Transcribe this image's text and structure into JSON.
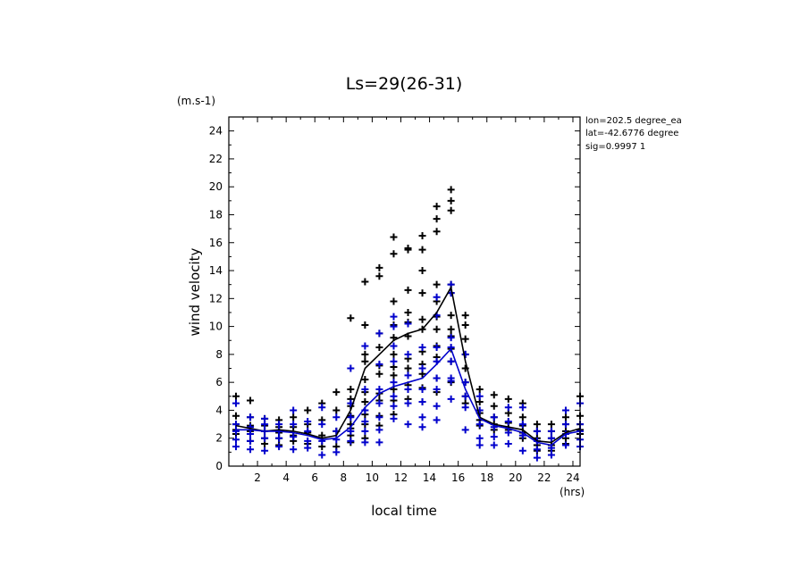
{
  "chart_data": {
    "type": "scatter",
    "title": "Ls=29(26-31)",
    "xlabel": "local time",
    "ylabel": "wind velocity",
    "x_unit": "(hrs)",
    "y_unit": "(m.s-1)",
    "xlim": [
      0,
      24.5
    ],
    "ylim": [
      0,
      25
    ],
    "x_ticks": [
      2,
      4,
      6,
      8,
      10,
      12,
      14,
      16,
      18,
      20,
      22,
      24
    ],
    "y_ticks": [
      0,
      2,
      4,
      6,
      8,
      10,
      12,
      14,
      16,
      18,
      20,
      22,
      24
    ],
    "info_lines": [
      "lon=202.5 degree_ea",
      "lat=-42.6776 degree",
      "sig=0.9997 1"
    ],
    "colors": {
      "series1": "#000000",
      "series2": "#0000cc"
    },
    "series": [
      {
        "x": [
          0.5,
          1.5,
          2.5,
          3.5,
          4.5,
          5.5,
          6.5,
          7.5,
          8.5,
          9.5,
          10.5,
          11.5,
          12.5,
          13.5,
          14.5,
          15.5,
          16.5,
          17.5,
          18.5,
          19.5,
          20.5,
          21.5,
          22.5,
          23.5,
          24.5
        ],
        "values": [
          2.9,
          2.7,
          2.5,
          2.6,
          2.5,
          2.3,
          2.0,
          2.2,
          4.0,
          7.0,
          8.0,
          9.0,
          9.5,
          9.8,
          11.0,
          12.8,
          7.5,
          3.5,
          3.0,
          2.8,
          2.6,
          1.8,
          1.7,
          2.4,
          2.7
        ],
        "points": [
          [
            0.5,
            5.0
          ],
          [
            0.5,
            3.6
          ],
          [
            0.5,
            3.0
          ],
          [
            0.5,
            2.6
          ],
          [
            0.5,
            2.3
          ],
          [
            1.5,
            4.7
          ],
          [
            1.5,
            3.5
          ],
          [
            1.5,
            2.9
          ],
          [
            1.5,
            2.5
          ],
          [
            1.5,
            1.8
          ],
          [
            2.5,
            3.4
          ],
          [
            2.5,
            2.9
          ],
          [
            2.5,
            2.5
          ],
          [
            2.5,
            2.0
          ],
          [
            2.5,
            1.6
          ],
          [
            3.5,
            3.3
          ],
          [
            3.5,
            2.8
          ],
          [
            3.5,
            2.4
          ],
          [
            3.5,
            2.0
          ],
          [
            3.5,
            1.5
          ],
          [
            4.5,
            3.5
          ],
          [
            4.5,
            2.8
          ],
          [
            4.5,
            2.2
          ],
          [
            4.5,
            1.8
          ],
          [
            5.5,
            4.0
          ],
          [
            5.5,
            3.0
          ],
          [
            5.5,
            2.4
          ],
          [
            5.5,
            1.6
          ],
          [
            6.5,
            4.5
          ],
          [
            6.5,
            3.3
          ],
          [
            6.5,
            2.2
          ],
          [
            6.5,
            1.4
          ],
          [
            7.5,
            5.3
          ],
          [
            7.5,
            4.0
          ],
          [
            7.5,
            2.5
          ],
          [
            7.5,
            1.4
          ],
          [
            8.5,
            10.6
          ],
          [
            8.5,
            5.5
          ],
          [
            8.5,
            4.8
          ],
          [
            8.5,
            4.3
          ],
          [
            8.5,
            3.6
          ],
          [
            8.5,
            3.0
          ],
          [
            8.5,
            2.7
          ],
          [
            8.5,
            2.2
          ],
          [
            8.5,
            1.7
          ],
          [
            9.5,
            13.2
          ],
          [
            9.5,
            10.1
          ],
          [
            9.5,
            8.0
          ],
          [
            9.5,
            7.5
          ],
          [
            9.5,
            6.2
          ],
          [
            9.5,
            5.3
          ],
          [
            9.5,
            4.6
          ],
          [
            9.5,
            3.7
          ],
          [
            9.5,
            3.0
          ],
          [
            9.5,
            2.0
          ],
          [
            10.5,
            14.2
          ],
          [
            10.5,
            13.6
          ],
          [
            10.5,
            9.5
          ],
          [
            10.5,
            8.5
          ],
          [
            10.5,
            7.2
          ],
          [
            10.5,
            6.6
          ],
          [
            10.5,
            5.2
          ],
          [
            10.5,
            4.7
          ],
          [
            10.5,
            3.6
          ],
          [
            10.5,
            2.9
          ],
          [
            11.5,
            16.4
          ],
          [
            11.5,
            15.2
          ],
          [
            11.5,
            11.8
          ],
          [
            11.5,
            10.1
          ],
          [
            11.5,
            9.2
          ],
          [
            11.5,
            8.0
          ],
          [
            11.5,
            7.1
          ],
          [
            11.5,
            6.5
          ],
          [
            11.5,
            5.5
          ],
          [
            11.5,
            4.7
          ],
          [
            11.5,
            3.7
          ],
          [
            12.5,
            15.6
          ],
          [
            12.5,
            15.5
          ],
          [
            12.5,
            12.6
          ],
          [
            12.5,
            11.0
          ],
          [
            12.5,
            10.3
          ],
          [
            12.5,
            9.3
          ],
          [
            12.5,
            7.7
          ],
          [
            12.5,
            7.0
          ],
          [
            12.5,
            5.8
          ],
          [
            12.5,
            4.8
          ],
          [
            13.5,
            16.5
          ],
          [
            13.5,
            15.5
          ],
          [
            13.5,
            14.0
          ],
          [
            13.5,
            12.4
          ],
          [
            13.5,
            10.5
          ],
          [
            13.5,
            9.8
          ],
          [
            13.5,
            8.2
          ],
          [
            13.5,
            7.3
          ],
          [
            13.5,
            6.6
          ],
          [
            13.5,
            5.6
          ],
          [
            13.5,
            4.6
          ],
          [
            14.5,
            18.6
          ],
          [
            14.5,
            17.7
          ],
          [
            14.5,
            16.8
          ],
          [
            14.5,
            13.0
          ],
          [
            14.5,
            11.8
          ],
          [
            14.5,
            10.7
          ],
          [
            14.5,
            9.8
          ],
          [
            14.5,
            8.6
          ],
          [
            14.5,
            7.8
          ],
          [
            14.5,
            6.3
          ],
          [
            14.5,
            5.3
          ],
          [
            15.5,
            19.8
          ],
          [
            15.5,
            19.0
          ],
          [
            15.5,
            18.3
          ],
          [
            15.5,
            13.0
          ],
          [
            15.5,
            12.4
          ],
          [
            15.5,
            10.8
          ],
          [
            15.5,
            9.8
          ],
          [
            15.5,
            9.3
          ],
          [
            15.5,
            8.4
          ],
          [
            15.5,
            7.5
          ],
          [
            15.5,
            6.0
          ],
          [
            16.5,
            10.8
          ],
          [
            16.5,
            10.1
          ],
          [
            16.5,
            9.1
          ],
          [
            16.5,
            8.0
          ],
          [
            16.5,
            7.0
          ],
          [
            16.5,
            6.0
          ],
          [
            16.5,
            5.0
          ],
          [
            16.5,
            4.5
          ],
          [
            17.5,
            5.5
          ],
          [
            17.5,
            4.6
          ],
          [
            17.5,
            3.8
          ],
          [
            17.5,
            3.3
          ],
          [
            17.5,
            2.9
          ],
          [
            18.5,
            5.1
          ],
          [
            18.5,
            4.3
          ],
          [
            18.5,
            3.5
          ],
          [
            18.5,
            3.0
          ],
          [
            18.5,
            2.6
          ],
          [
            19.5,
            4.8
          ],
          [
            19.5,
            3.8
          ],
          [
            19.5,
            3.1
          ],
          [
            19.5,
            2.6
          ],
          [
            20.5,
            4.5
          ],
          [
            20.5,
            3.5
          ],
          [
            20.5,
            2.9
          ],
          [
            20.5,
            2.4
          ],
          [
            20.5,
            2.0
          ],
          [
            21.5,
            3.0
          ],
          [
            21.5,
            2.5
          ],
          [
            21.5,
            2.0
          ],
          [
            21.5,
            1.5
          ],
          [
            21.5,
            1.1
          ],
          [
            22.5,
            3.0
          ],
          [
            22.5,
            2.5
          ],
          [
            22.5,
            2.0
          ],
          [
            22.5,
            1.5
          ],
          [
            22.5,
            1.1
          ],
          [
            23.5,
            3.5
          ],
          [
            23.5,
            3.0
          ],
          [
            23.5,
            2.5
          ],
          [
            23.5,
            2.0
          ],
          [
            23.5,
            1.6
          ],
          [
            24.5,
            5.0
          ],
          [
            24.5,
            3.6
          ],
          [
            24.5,
            3.0
          ],
          [
            24.5,
            2.6
          ],
          [
            24.5,
            2.3
          ]
        ]
      },
      {
        "x": [
          0.5,
          1.5,
          2.5,
          3.5,
          4.5,
          5.5,
          6.5,
          7.5,
          8.5,
          9.5,
          10.5,
          11.5,
          12.5,
          13.5,
          14.5,
          15.5,
          16.5,
          17.5,
          18.5,
          19.5,
          20.5,
          21.5,
          22.5,
          23.5,
          24.5
        ],
        "values": [
          2.6,
          2.6,
          2.5,
          2.5,
          2.4,
          2.2,
          1.9,
          2.0,
          2.8,
          4.2,
          5.2,
          5.7,
          6.0,
          6.3,
          7.3,
          8.4,
          5.5,
          3.4,
          2.9,
          2.7,
          2.4,
          1.7,
          1.5,
          2.3,
          2.5
        ],
        "points": [
          [
            0.5,
            4.5
          ],
          [
            0.5,
            3.0
          ],
          [
            0.5,
            2.5
          ],
          [
            0.5,
            1.9
          ],
          [
            0.5,
            1.4
          ],
          [
            1.5,
            3.5
          ],
          [
            1.5,
            2.8
          ],
          [
            1.5,
            2.3
          ],
          [
            1.5,
            1.8
          ],
          [
            1.5,
            1.2
          ],
          [
            2.5,
            3.4
          ],
          [
            2.5,
            3.0
          ],
          [
            2.5,
            2.5
          ],
          [
            2.5,
            2.0
          ],
          [
            2.5,
            1.1
          ],
          [
            3.5,
            3.0
          ],
          [
            3.5,
            2.5
          ],
          [
            3.5,
            2.0
          ],
          [
            3.5,
            1.4
          ],
          [
            4.5,
            4.0
          ],
          [
            4.5,
            3.0
          ],
          [
            4.5,
            2.1
          ],
          [
            4.5,
            1.2
          ],
          [
            5.5,
            3.2
          ],
          [
            5.5,
            2.5
          ],
          [
            5.5,
            1.8
          ],
          [
            5.5,
            1.3
          ],
          [
            6.5,
            4.2
          ],
          [
            6.5,
            3.0
          ],
          [
            6.5,
            1.8
          ],
          [
            6.5,
            0.8
          ],
          [
            7.5,
            3.5
          ],
          [
            7.5,
            2.5
          ],
          [
            7.5,
            1.9
          ],
          [
            7.5,
            1.0
          ],
          [
            8.5,
            7.0
          ],
          [
            8.5,
            4.5
          ],
          [
            8.5,
            3.5
          ],
          [
            8.5,
            2.5
          ],
          [
            8.5,
            1.8
          ],
          [
            9.5,
            8.6
          ],
          [
            9.5,
            5.5
          ],
          [
            9.5,
            4.0
          ],
          [
            9.5,
            3.2
          ],
          [
            9.5,
            2.5
          ],
          [
            9.5,
            1.7
          ],
          [
            10.5,
            9.5
          ],
          [
            10.5,
            7.3
          ],
          [
            10.5,
            5.5
          ],
          [
            10.5,
            4.5
          ],
          [
            10.5,
            3.5
          ],
          [
            10.5,
            2.6
          ],
          [
            10.5,
            1.7
          ],
          [
            11.5,
            10.7
          ],
          [
            11.5,
            10.0
          ],
          [
            11.5,
            8.6
          ],
          [
            11.5,
            7.5
          ],
          [
            11.5,
            6.0
          ],
          [
            11.5,
            5.0
          ],
          [
            11.5,
            4.3
          ],
          [
            11.5,
            3.4
          ],
          [
            12.5,
            10.2
          ],
          [
            12.5,
            8.0
          ],
          [
            12.5,
            6.5
          ],
          [
            12.5,
            5.5
          ],
          [
            12.5,
            4.5
          ],
          [
            12.5,
            3.0
          ],
          [
            13.5,
            8.5
          ],
          [
            13.5,
            7.0
          ],
          [
            13.5,
            5.5
          ],
          [
            13.5,
            4.6
          ],
          [
            13.5,
            3.5
          ],
          [
            13.5,
            2.8
          ],
          [
            14.5,
            12.1
          ],
          [
            14.5,
            10.8
          ],
          [
            14.5,
            8.5
          ],
          [
            14.5,
            7.5
          ],
          [
            14.5,
            6.3
          ],
          [
            14.5,
            5.5
          ],
          [
            14.5,
            4.3
          ],
          [
            14.5,
            3.3
          ],
          [
            15.5,
            13.0
          ],
          [
            15.5,
            12.4
          ],
          [
            15.5,
            9.2
          ],
          [
            15.5,
            8.5
          ],
          [
            15.5,
            7.5
          ],
          [
            15.5,
            6.3
          ],
          [
            15.5,
            6.1
          ],
          [
            15.5,
            4.8
          ],
          [
            16.5,
            8.0
          ],
          [
            16.5,
            6.0
          ],
          [
            16.5,
            5.0
          ],
          [
            16.5,
            4.2
          ],
          [
            16.5,
            2.6
          ],
          [
            17.5,
            5.0
          ],
          [
            17.5,
            4.0
          ],
          [
            17.5,
            3.0
          ],
          [
            17.5,
            2.0
          ],
          [
            17.5,
            1.5
          ],
          [
            18.5,
            3.5
          ],
          [
            18.5,
            2.8
          ],
          [
            18.5,
            2.1
          ],
          [
            18.5,
            1.5
          ],
          [
            19.5,
            4.2
          ],
          [
            19.5,
            3.2
          ],
          [
            19.5,
            2.4
          ],
          [
            19.5,
            1.6
          ],
          [
            20.5,
            4.2
          ],
          [
            20.5,
            3.0
          ],
          [
            20.5,
            2.2
          ],
          [
            20.5,
            1.1
          ],
          [
            21.5,
            2.5
          ],
          [
            21.5,
            1.8
          ],
          [
            21.5,
            1.2
          ],
          [
            21.5,
            0.6
          ],
          [
            22.5,
            2.5
          ],
          [
            22.5,
            2.0
          ],
          [
            22.5,
            1.3
          ],
          [
            22.5,
            0.8
          ],
          [
            23.5,
            4.0
          ],
          [
            23.5,
            3.0
          ],
          [
            23.5,
            2.3
          ],
          [
            23.5,
            1.5
          ],
          [
            24.5,
            4.5
          ],
          [
            24.5,
            3.0
          ],
          [
            24.5,
            2.5
          ],
          [
            24.5,
            1.9
          ],
          [
            24.5,
            1.4
          ]
        ]
      }
    ]
  }
}
